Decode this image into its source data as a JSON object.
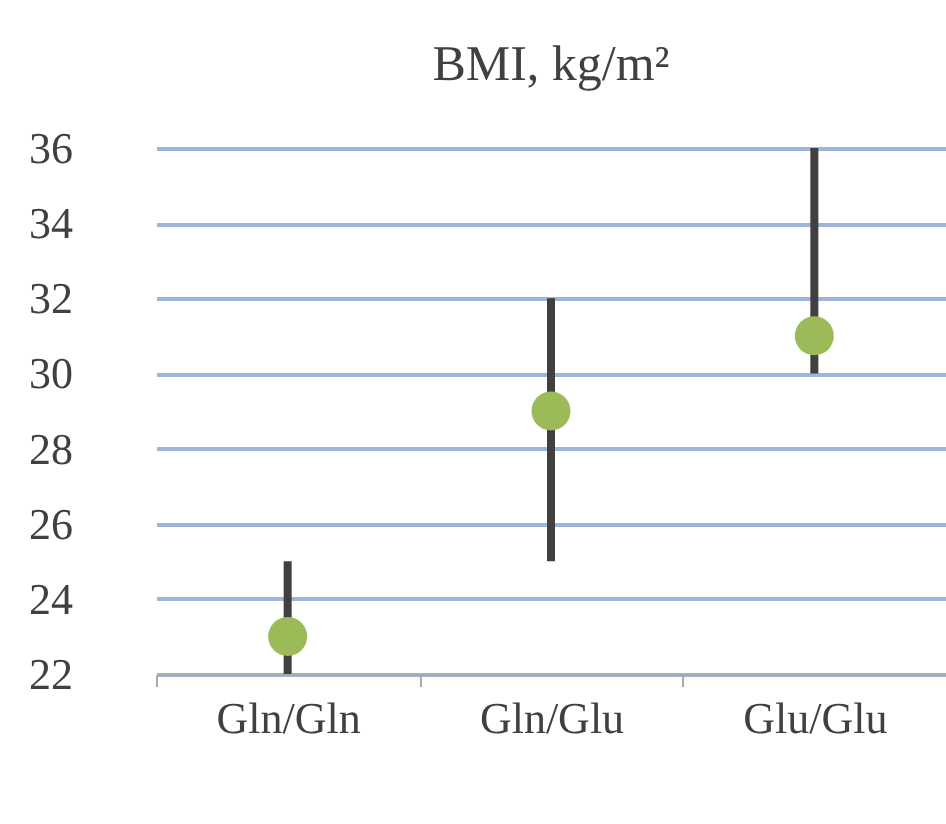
{
  "chart_data": {
    "type": "scatter",
    "title": "BMI, kg/m²",
    "categories": [
      "Gln/Gln",
      "Gln/Glu",
      "Glu/Glu"
    ],
    "values": [
      23,
      29,
      31
    ],
    "errors": [
      [
        22,
        25
      ],
      [
        25,
        32
      ],
      [
        30,
        36
      ]
    ],
    "color": "#9bbb59",
    "ylim": [
      22,
      36
    ],
    "yticks": [
      22,
      24,
      26,
      28,
      30,
      32,
      34,
      36
    ],
    "grid": "y",
    "marker": "circle"
  }
}
